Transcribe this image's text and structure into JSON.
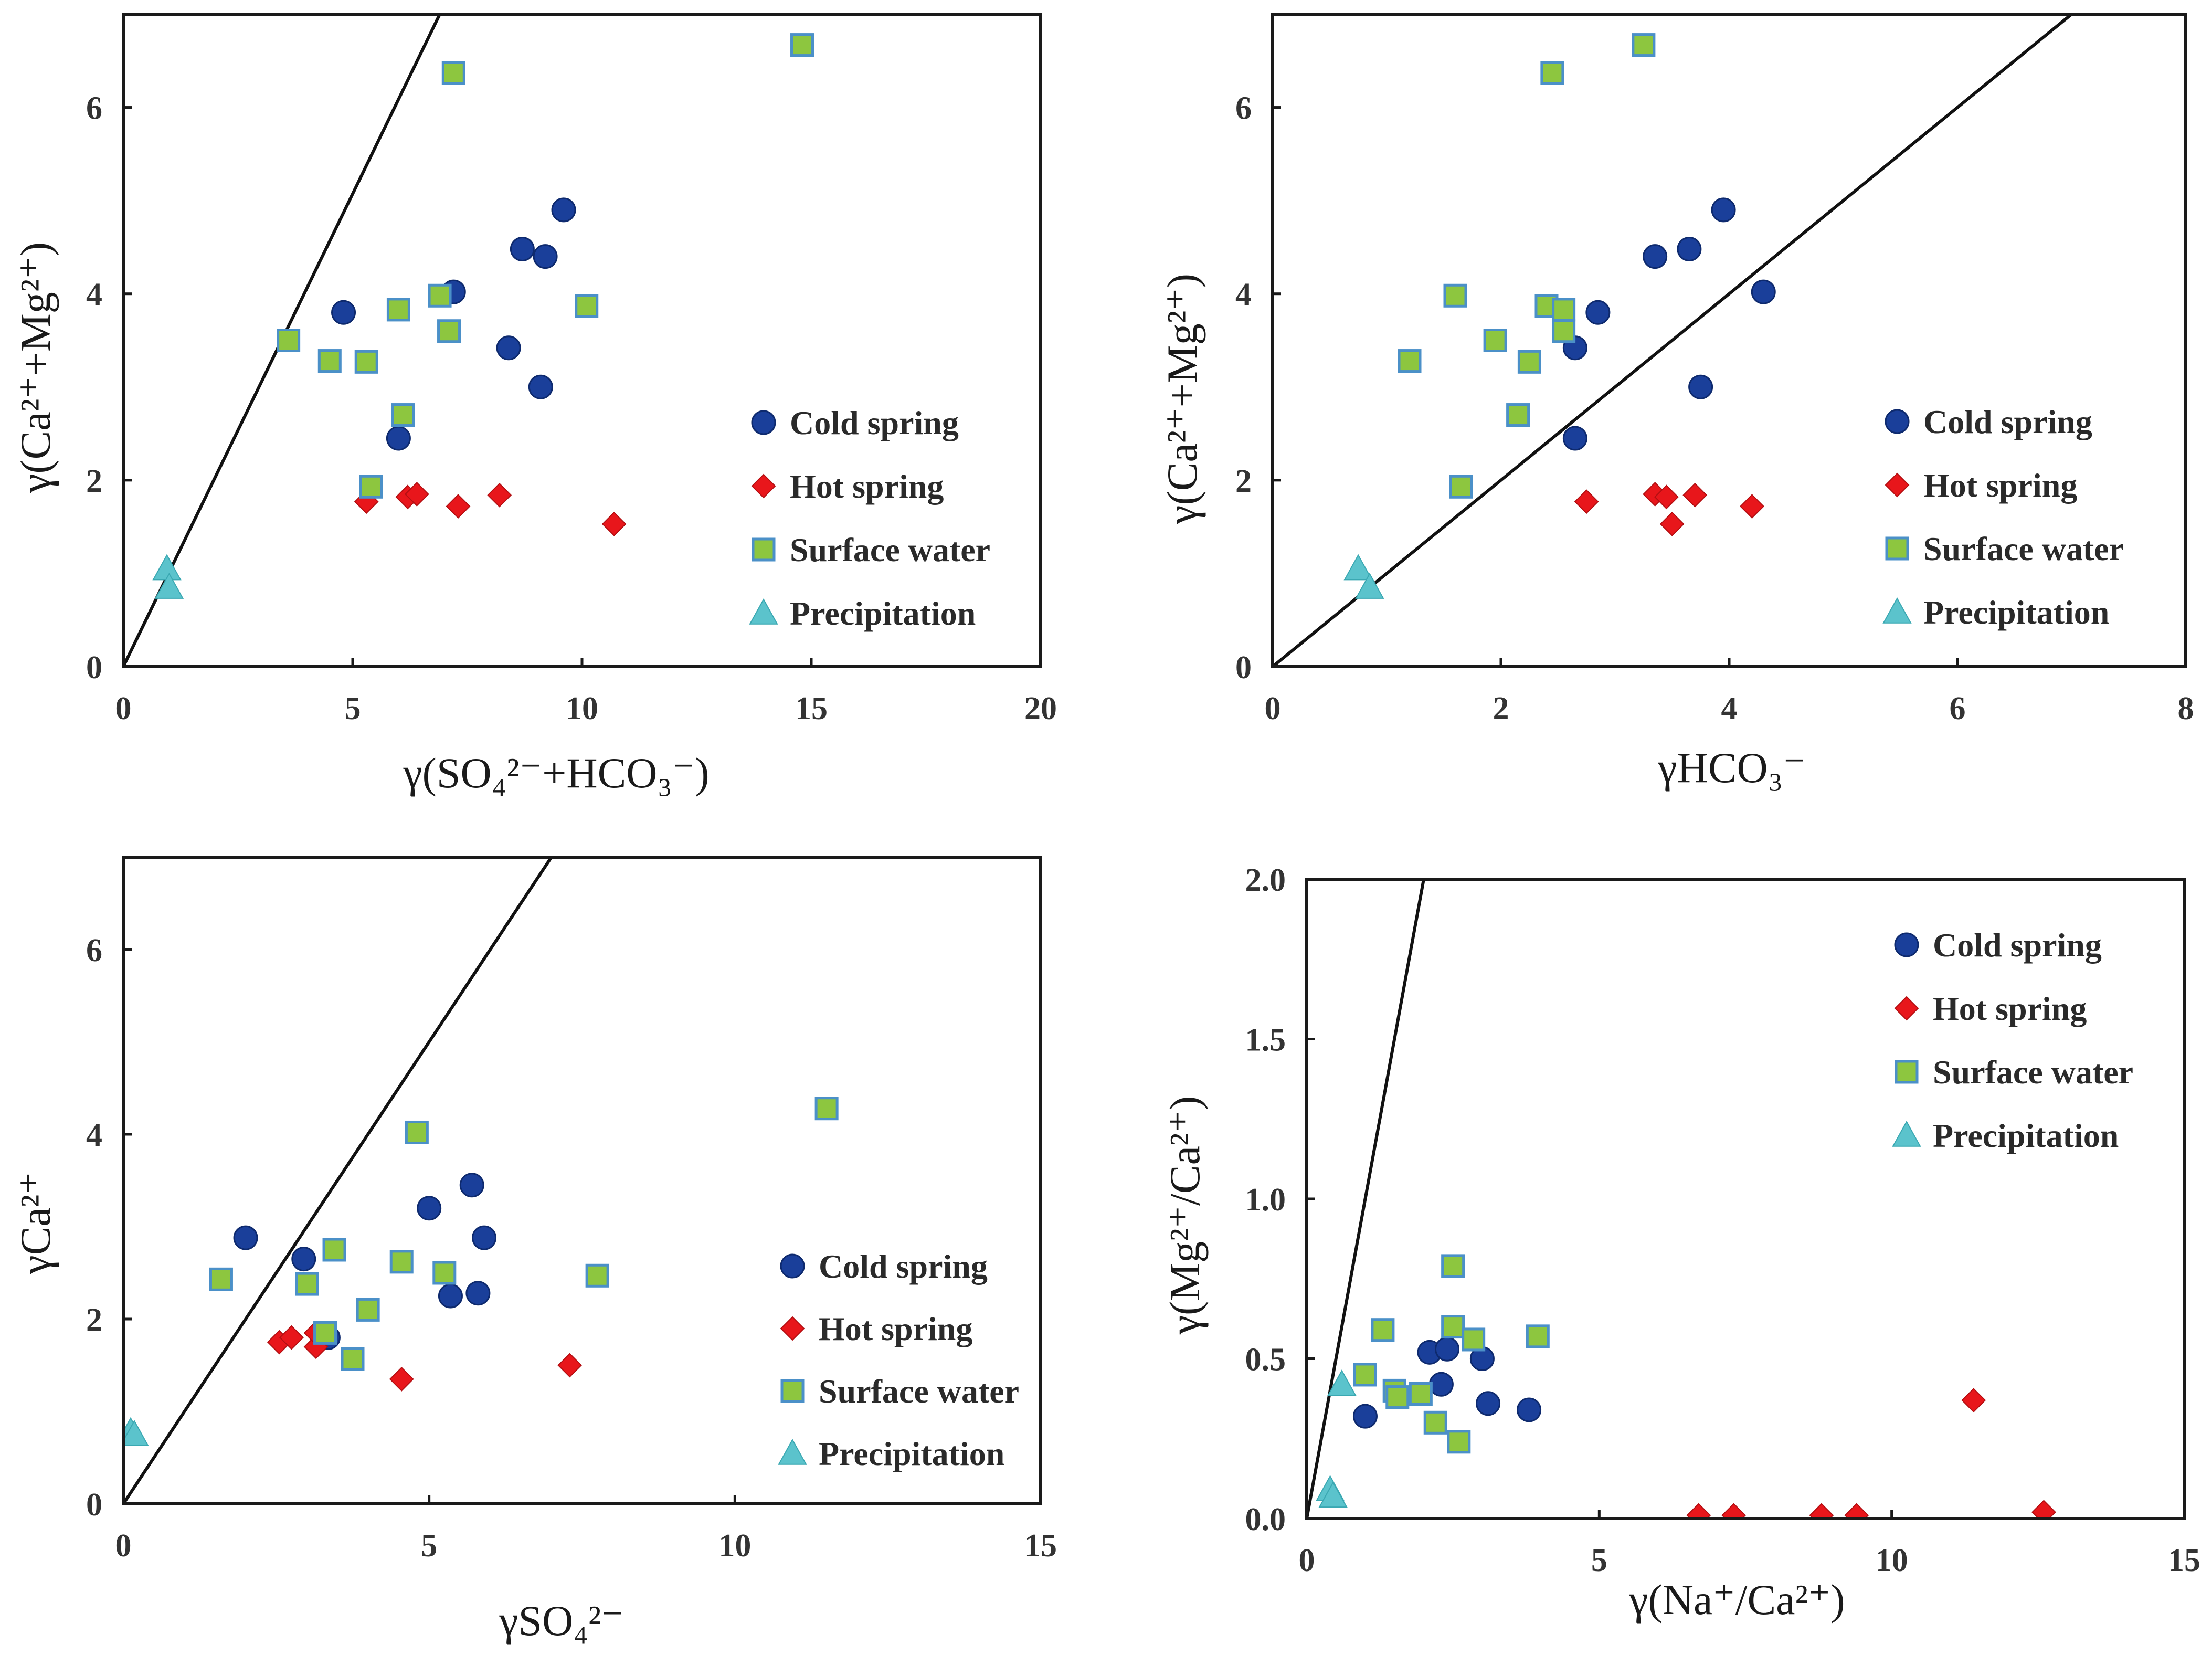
{
  "colors": {
    "cold_spring": "#1a3f9a",
    "hot_spring": "#e8161b",
    "surface_water_fill": "#8dc63f",
    "surface_water_edge": "#4b90c8",
    "precipitation": "#5bc3cc"
  },
  "chart_data": [
    {
      "type": "scatter",
      "title": "",
      "xlabel": "γ(SO₄²⁻+HCO₃⁻)",
      "ylabel": "γ(Ca²⁺+Mg²⁺)",
      "xlim": [
        0,
        20
      ],
      "ylim": [
        0,
        7
      ],
      "xticks": [
        0,
        5,
        10,
        15,
        20
      ],
      "xtick_labels": [
        "0",
        "5",
        "10",
        "15",
        "20"
      ],
      "yticks": [
        0,
        2,
        4,
        6
      ],
      "ytick_labels": [
        "0",
        "2",
        "4",
        "6"
      ],
      "legend_placement": "right",
      "reference_line": [
        [
          0,
          0
        ],
        [
          6.9,
          7
        ]
      ],
      "series": [
        {
          "name": "Cold spring",
          "marker": "circle",
          "points": [
            [
              4.8,
              3.8
            ],
            [
              6.0,
              2.45
            ],
            [
              7.2,
              4.02
            ],
            [
              8.4,
              3.42
            ],
            [
              8.7,
              4.48
            ],
            [
              9.1,
              3.0
            ],
            [
              9.2,
              4.4
            ],
            [
              9.6,
              4.9
            ]
          ]
        },
        {
          "name": "Hot spring",
          "marker": "diamond",
          "points": [
            [
              5.3,
              1.77
            ],
            [
              6.2,
              1.82
            ],
            [
              6.4,
              1.85
            ],
            [
              7.3,
              1.72
            ],
            [
              8.2,
              1.84
            ],
            [
              10.7,
              1.53
            ]
          ]
        },
        {
          "name": "Surface water",
          "marker": "square",
          "points": [
            [
              3.6,
              3.5
            ],
            [
              4.5,
              3.28
            ],
            [
              5.3,
              3.27
            ],
            [
              5.4,
              1.93
            ],
            [
              6.0,
              3.83
            ],
            [
              6.1,
              2.7
            ],
            [
              6.9,
              3.98
            ],
            [
              7.1,
              3.6
            ],
            [
              7.2,
              6.37
            ],
            [
              10.1,
              3.87
            ],
            [
              14.8,
              6.67
            ]
          ]
        },
        {
          "name": "Precipitation",
          "marker": "triangle",
          "points": [
            [
              0.95,
              1.05
            ],
            [
              1.0,
              0.85
            ]
          ]
        }
      ]
    },
    {
      "type": "scatter",
      "title": "",
      "xlabel": "γHCO₃⁻",
      "ylabel": "γ(Ca²⁺+Mg²⁺)",
      "xlim": [
        0,
        8
      ],
      "ylim": [
        0,
        7
      ],
      "xticks": [
        0,
        2,
        4,
        6,
        8
      ],
      "xtick_labels": [
        "0",
        "2",
        "4",
        "6",
        "8"
      ],
      "yticks": [
        0,
        2,
        4,
        6
      ],
      "ytick_labels": [
        "0",
        "2",
        "4",
        "6"
      ],
      "legend_placement": "right",
      "reference_line": [
        [
          0,
          0
        ],
        [
          7.0,
          7.0
        ]
      ],
      "series": [
        {
          "name": "Cold spring",
          "marker": "circle",
          "points": [
            [
              2.65,
              2.45
            ],
            [
              2.65,
              3.42
            ],
            [
              2.85,
              3.8
            ],
            [
              3.35,
              4.4
            ],
            [
              3.65,
              4.48
            ],
            [
              3.75,
              3.0
            ],
            [
              3.95,
              4.9
            ],
            [
              4.3,
              4.02
            ]
          ]
        },
        {
          "name": "Hot spring",
          "marker": "diamond",
          "points": [
            [
              2.75,
              1.77
            ],
            [
              3.35,
              1.85
            ],
            [
              3.45,
              1.82
            ],
            [
              3.5,
              1.53
            ],
            [
              3.7,
              1.84
            ],
            [
              4.2,
              1.72
            ]
          ]
        },
        {
          "name": "Surface water",
          "marker": "square",
          "points": [
            [
              1.2,
              3.28
            ],
            [
              1.6,
              3.98
            ],
            [
              1.65,
              1.93
            ],
            [
              1.95,
              3.5
            ],
            [
              2.15,
              2.7
            ],
            [
              2.25,
              3.27
            ],
            [
              2.4,
              3.87
            ],
            [
              2.45,
              6.37
            ],
            [
              2.55,
              3.6
            ],
            [
              2.55,
              3.83
            ],
            [
              3.25,
              6.67
            ]
          ]
        },
        {
          "name": "Precipitation",
          "marker": "triangle",
          "points": [
            [
              0.75,
              1.05
            ],
            [
              0.85,
              0.85
            ]
          ]
        }
      ]
    },
    {
      "type": "scatter",
      "title": "",
      "xlabel": "γSO₄²⁻",
      "ylabel": "γCa²⁺",
      "xlim": [
        0,
        15
      ],
      "ylim": [
        0,
        7
      ],
      "xticks": [
        0,
        5,
        10,
        15
      ],
      "xtick_labels": [
        "0",
        "5",
        "10",
        "15"
      ],
      "yticks": [
        0,
        2,
        4,
        6
      ],
      "ytick_labels": [
        "0",
        "2",
        "4",
        "6"
      ],
      "legend_placement": "right",
      "reference_line": [
        [
          0,
          0
        ],
        [
          7.0,
          7.0
        ]
      ],
      "series": [
        {
          "name": "Cold spring",
          "marker": "circle",
          "points": [
            [
              2.0,
              2.88
            ],
            [
              2.95,
              2.65
            ],
            [
              3.35,
              1.8
            ],
            [
              5.0,
              3.2
            ],
            [
              5.35,
              2.25
            ],
            [
              5.7,
              3.45
            ],
            [
              5.8,
              2.28
            ],
            [
              5.9,
              2.88
            ]
          ]
        },
        {
          "name": "Hot spring",
          "marker": "diamond",
          "points": [
            [
              2.55,
              1.75
            ],
            [
              2.75,
              1.8
            ],
            [
              3.15,
              1.7
            ],
            [
              3.15,
              1.85
            ],
            [
              4.55,
              1.35
            ],
            [
              7.3,
              1.5
            ]
          ]
        },
        {
          "name": "Surface water",
          "marker": "square",
          "points": [
            [
              1.6,
              2.43
            ],
            [
              3.0,
              2.38
            ],
            [
              3.3,
              1.85
            ],
            [
              3.45,
              2.75
            ],
            [
              3.75,
              1.57
            ],
            [
              4.0,
              2.1
            ],
            [
              4.55,
              2.62
            ],
            [
              4.8,
              4.02
            ],
            [
              5.25,
              2.5
            ],
            [
              7.75,
              2.47
            ],
            [
              11.5,
              4.28
            ]
          ]
        },
        {
          "name": "Precipitation",
          "marker": "triangle",
          "points": [
            [
              0.12,
              0.78
            ],
            [
              0.18,
              0.75
            ]
          ]
        }
      ]
    },
    {
      "type": "scatter",
      "title": "",
      "xlabel": "γ(Na⁺/Ca²⁺)",
      "ylabel": "γ(Mg²⁺/Ca²⁺)",
      "xlim": [
        0,
        15
      ],
      "ylim": [
        0,
        2.0
      ],
      "xticks": [
        0,
        5,
        10,
        15
      ],
      "xtick_labels": [
        "0",
        "5",
        "10",
        "15"
      ],
      "yticks": [
        0,
        0.5,
        1.0,
        1.5,
        2.0
      ],
      "ytick_labels": [
        "0.0",
        "0.5",
        "1.0",
        "1.5",
        "2.0"
      ],
      "legend_placement": "top-right",
      "reference_line": [
        [
          0,
          0
        ],
        [
          2.0,
          2.0
        ]
      ],
      "series": [
        {
          "name": "Cold spring",
          "marker": "circle",
          "points": [
            [
              1.0,
              0.32
            ],
            [
              2.1,
              0.52
            ],
            [
              2.3,
              0.42
            ],
            [
              2.4,
              0.53
            ],
            [
              3.0,
              0.5
            ],
            [
              3.1,
              0.36
            ],
            [
              3.8,
              0.34
            ]
          ]
        },
        {
          "name": "Hot spring",
          "marker": "diamond",
          "points": [
            [
              6.7,
              0.01
            ],
            [
              7.3,
              0.01
            ],
            [
              8.8,
              0.01
            ],
            [
              9.4,
              0.01
            ],
            [
              11.4,
              0.37
            ],
            [
              12.6,
              0.02
            ]
          ]
        },
        {
          "name": "Surface water",
          "marker": "square",
          "points": [
            [
              1.0,
              0.45
            ],
            [
              1.3,
              0.59
            ],
            [
              1.5,
              0.4
            ],
            [
              1.55,
              0.38
            ],
            [
              1.95,
              0.39
            ],
            [
              2.2,
              0.3
            ],
            [
              2.5,
              0.6
            ],
            [
              2.5,
              0.79
            ],
            [
              2.6,
              0.24
            ],
            [
              2.85,
              0.56
            ],
            [
              3.95,
              0.57
            ]
          ]
        },
        {
          "name": "Precipitation",
          "marker": "triangle",
          "points": [
            [
              0.4,
              0.09
            ],
            [
              0.45,
              0.07
            ],
            [
              0.6,
              0.42
            ]
          ]
        }
      ]
    }
  ]
}
